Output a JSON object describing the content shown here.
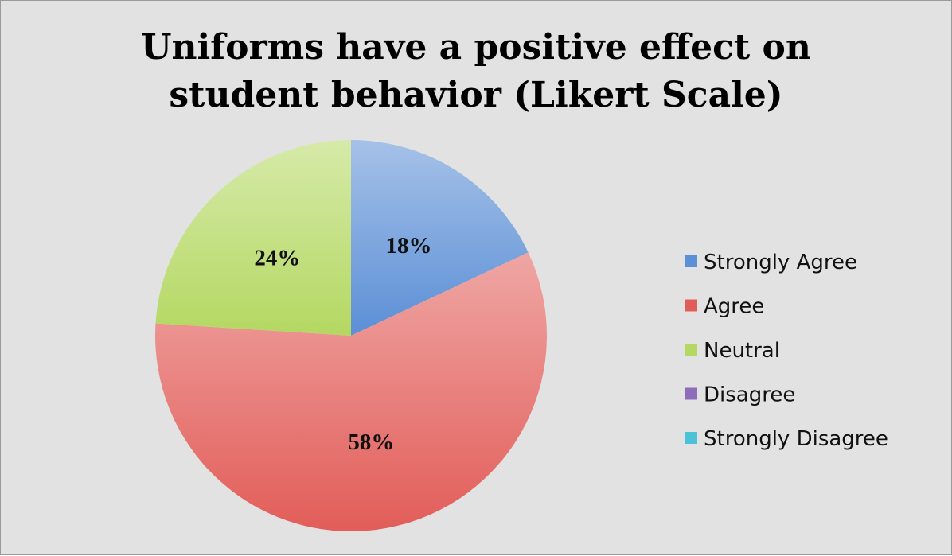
{
  "chart_data": {
    "type": "pie",
    "title_lines": [
      "Uniforms have a positive effect on",
      "student behavior (Likert Scale)"
    ],
    "categories": [
      "Strongly Agree",
      "Agree",
      "Neutral",
      "Disagree",
      "Strongly Disagree"
    ],
    "values": [
      18,
      58,
      24,
      0,
      0
    ],
    "data_labels": [
      "18%",
      "58%",
      "24%",
      "",
      ""
    ],
    "colors": [
      "#5b8fd6",
      "#e25d59",
      "#b4d862",
      "#8e6bbb",
      "#4cc2d9"
    ],
    "legend_position": "right"
  }
}
